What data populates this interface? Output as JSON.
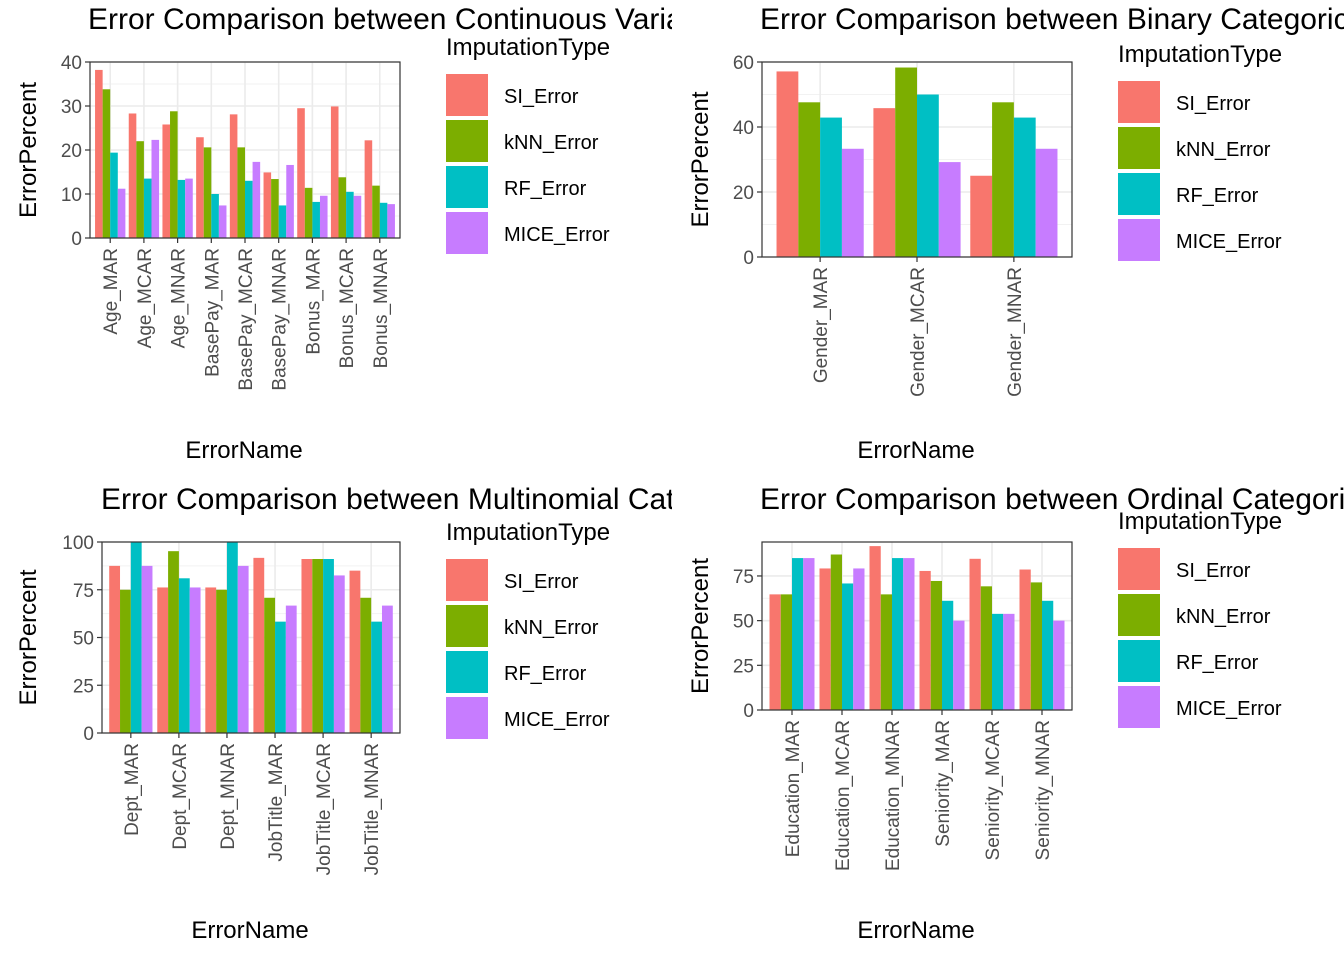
{
  "legend": {
    "title": "ImputationType",
    "items": [
      {
        "label": "SI_Error",
        "color": "#F8766D"
      },
      {
        "label": "kNN_Error",
        "color": "#7CAE00"
      },
      {
        "label": "RF_Error",
        "color": "#00BFC4"
      },
      {
        "label": "MICE_Error",
        "color": "#C77CFF"
      }
    ]
  },
  "chart_data": [
    {
      "type": "bar",
      "title": "Error Comparison between Continuous Variables",
      "xlabel": "ErrorName",
      "ylabel": "ErrorPercent",
      "ylim": [
        0,
        40
      ],
      "yticks": [
        0,
        10,
        20,
        30,
        40
      ],
      "grid": true,
      "legend_position": "right",
      "categories": [
        "Age_MAR",
        "Age_MCAR",
        "Age_MNAR",
        "BasePay_MAR",
        "BasePay_MCAR",
        "BasePay_MNAR",
        "Bonus_MAR",
        "Bonus_MCAR",
        "Bonus_MNAR"
      ],
      "series": [
        {
          "name": "SI_Error",
          "values": [
            38.2,
            28.3,
            25.8,
            22.9,
            28.1,
            14.9,
            29.5,
            29.9,
            22.2
          ]
        },
        {
          "name": "kNN_Error",
          "values": [
            33.8,
            22.0,
            28.8,
            20.6,
            20.6,
            13.4,
            11.4,
            13.8,
            11.9
          ]
        },
        {
          "name": "RF_Error",
          "values": [
            19.4,
            13.5,
            13.2,
            10.0,
            13.0,
            7.4,
            8.2,
            10.5,
            8.0
          ]
        },
        {
          "name": "MICE_Error",
          "values": [
            11.2,
            22.3,
            13.5,
            7.4,
            17.3,
            16.6,
            9.6,
            9.6,
            7.7
          ]
        }
      ]
    },
    {
      "type": "bar",
      "title": "Error Comparison between Binary Categorical Variables",
      "xlabel": "ErrorName",
      "ylabel": "ErrorPercent",
      "ylim": [
        0,
        60
      ],
      "yticks": [
        0,
        20,
        40,
        60
      ],
      "grid": true,
      "legend_position": "right",
      "categories": [
        "Gender_MAR",
        "Gender_MCAR",
        "Gender_MNAR"
      ],
      "series": [
        {
          "name": "SI_Error",
          "values": [
            57.1,
            45.8,
            25.0
          ]
        },
        {
          "name": "kNN_Error",
          "values": [
            47.6,
            58.3,
            47.6
          ]
        },
        {
          "name": "RF_Error",
          "values": [
            42.9,
            50.0,
            42.9
          ]
        },
        {
          "name": "MICE_Error",
          "values": [
            33.3,
            29.2,
            33.3
          ]
        }
      ]
    },
    {
      "type": "bar",
      "title": "Error Comparison between Multinomial Categorical Variables",
      "xlabel": "ErrorName",
      "ylabel": "ErrorPercent",
      "ylim": [
        0,
        100
      ],
      "yticks": [
        0,
        25,
        50,
        75,
        100
      ],
      "grid": true,
      "legend_position": "right",
      "categories": [
        "Dept_MAR",
        "Dept_MCAR",
        "Dept_MNAR",
        "JobTitle_MAR",
        "JobTitle_MCAR",
        "JobTitle_MNAR"
      ],
      "series": [
        {
          "name": "SI_Error",
          "values": [
            87.5,
            76.2,
            76.2,
            91.7,
            91.1,
            85.0
          ]
        },
        {
          "name": "kNN_Error",
          "values": [
            75.0,
            95.2,
            75.0,
            70.8,
            91.1,
            70.8
          ]
        },
        {
          "name": "RF_Error",
          "values": [
            100.0,
            81.0,
            100.0,
            58.3,
            91.1,
            58.3
          ]
        },
        {
          "name": "MICE_Error",
          "values": [
            87.5,
            76.2,
            87.5,
            66.7,
            82.5,
            66.7
          ]
        }
      ]
    },
    {
      "type": "bar",
      "title": "Error Comparison between Ordinal Categorical Variables",
      "xlabel": "ErrorName",
      "ylabel": "ErrorPercent",
      "ylim": [
        0,
        94
      ],
      "yticks": [
        0,
        25,
        50,
        75
      ],
      "grid": true,
      "legend_position": "right",
      "categories": [
        "Education_MAR",
        "Education_MCAR",
        "Education_MNAR",
        "Seniority_MAR",
        "Seniority_MCAR",
        "Seniority_MNAR"
      ],
      "series": [
        {
          "name": "SI_Error",
          "values": [
            64.7,
            79.2,
            91.7,
            77.8,
            84.6,
            78.6
          ]
        },
        {
          "name": "kNN_Error",
          "values": [
            64.7,
            87.0,
            64.7,
            72.2,
            69.2,
            71.4
          ]
        },
        {
          "name": "RF_Error",
          "values": [
            85.0,
            70.8,
            85.0,
            61.1,
            53.8,
            61.1
          ]
        },
        {
          "name": "MICE_Error",
          "values": [
            85.0,
            79.2,
            85.0,
            50.0,
            53.8,
            50.0
          ]
        }
      ]
    }
  ]
}
